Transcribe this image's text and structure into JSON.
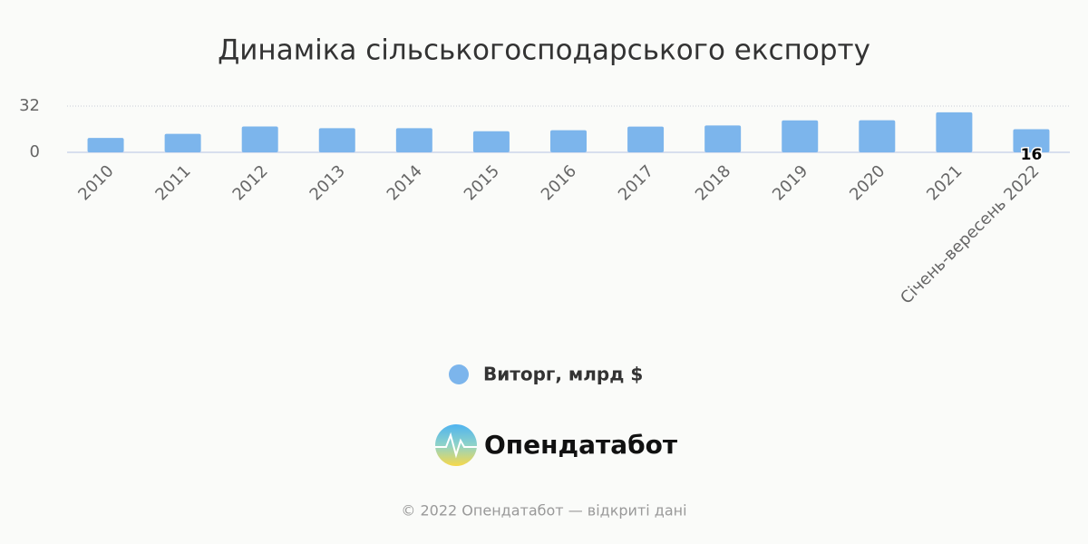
{
  "chart_data": {
    "type": "bar",
    "title": "Динаміка сільськогосподарського експорту",
    "categories": [
      "2010",
      "2011",
      "2012",
      "2013",
      "2014",
      "2015",
      "2016",
      "2017",
      "2018",
      "2019",
      "2020",
      "2021",
      "Січень-вересень 2022"
    ],
    "series": [
      {
        "name": "Виторг, млрд $",
        "color": "#7cb5ec",
        "values": [
          10,
          12.8,
          17.9,
          16.7,
          16.7,
          14.6,
          15.3,
          17.8,
          18.6,
          22.1,
          22.2,
          27.7,
          16
        ]
      }
    ],
    "ylim": [
      0,
      32
    ],
    "yticks": [
      0,
      32
    ],
    "grid": true,
    "data_label_last": true,
    "legend": "bottom"
  },
  "branding": {
    "logo_text": "Опендатабот",
    "footer": "© 2022 Опендатабот — відкриті дані"
  }
}
